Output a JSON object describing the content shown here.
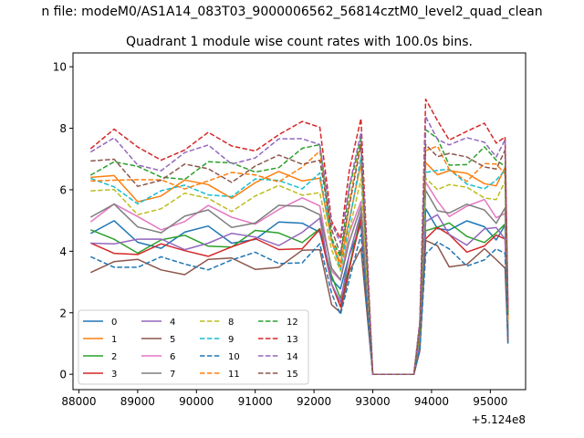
{
  "chart_data": {
    "type": "line",
    "suptitle": "n file: modeM0/AS1A14_083T03_9000006562_56814cztM0_level2_quad_clean",
    "title": "Quadrant 1 module wise count rates with 100.0s bins.",
    "xlabel": "",
    "ylabel": "",
    "x_offset_label": "+5.124e8",
    "xlim": [
      87900,
      95600
    ],
    "ylim": [
      -0.5,
      10.45
    ],
    "x_ticks": [
      88000,
      89000,
      90000,
      91000,
      92000,
      93000,
      94000,
      95000
    ],
    "x_tick_labels": [
      "88000",
      "89000",
      "90000",
      "91000",
      "92000",
      "93000",
      "94000",
      "95000"
    ],
    "y_ticks": [
      0,
      2,
      4,
      6,
      8,
      10
    ],
    "y_tick_labels": [
      "0",
      "2",
      "4",
      "6",
      "8",
      "10"
    ],
    "grid": false,
    "legend_position": "lower-left",
    "legend_columns": 4,
    "shape": [
      [
        88200,
        0.88
      ],
      [
        88600,
        0.9
      ],
      [
        89000,
        0.84
      ],
      [
        89400,
        0.84
      ],
      [
        89800,
        0.86
      ],
      [
        90200,
        0.88
      ],
      [
        90600,
        0.86
      ],
      [
        91000,
        0.88
      ],
      [
        91400,
        0.9
      ],
      [
        91800,
        0.92
      ],
      [
        92100,
        0.95
      ],
      [
        92300,
        0.6
      ],
      [
        92450,
        0.5
      ],
      [
        92600,
        0.75
      ],
      [
        92800,
        1.0
      ],
      [
        93000,
        0.0
      ],
      [
        93200,
        0.0
      ],
      [
        93600,
        0.0
      ],
      [
        93700,
        0.0
      ],
      [
        93800,
        0.2
      ],
      [
        93900,
        1.0
      ],
      [
        94100,
        0.97
      ],
      [
        94300,
        0.92
      ],
      [
        94600,
        0.9
      ],
      [
        94900,
        0.92
      ],
      [
        95100,
        0.9
      ],
      [
        95250,
        0.92
      ],
      [
        95300,
        0.25
      ]
    ],
    "series": [
      {
        "name": "0",
        "color": "#1f77b4",
        "style": "solid",
        "level": 5.2
      },
      {
        "name": "1",
        "color": "#ff7f0e",
        "style": "solid",
        "level": 7.0
      },
      {
        "name": "2",
        "color": "#2ca02c",
        "style": "solid",
        "level": 5.0
      },
      {
        "name": "3",
        "color": "#d62728",
        "style": "solid",
        "level": 4.7
      },
      {
        "name": "4",
        "color": "#9467bd",
        "style": "solid",
        "level": 5.0
      },
      {
        "name": "5",
        "color": "#8c564b",
        "style": "solid",
        "level": 4.1
      },
      {
        "name": "6",
        "color": "#e377c2",
        "style": "solid",
        "level": 5.9
      },
      {
        "name": "7",
        "color": "#7f7f7f",
        "style": "solid",
        "level": 5.8
      },
      {
        "name": "8",
        "color": "#bcbd22",
        "style": "dashed",
        "level": 6.5
      },
      {
        "name": "9",
        "color": "#17becf",
        "style": "dashed",
        "level": 6.9
      },
      {
        "name": "10",
        "color": "#1f77b4",
        "style": "dashed",
        "level": 4.2
      },
      {
        "name": "11",
        "color": "#ff7f0e",
        "style": "dashed",
        "level": 7.3
      },
      {
        "name": "12",
        "color": "#2ca02c",
        "style": "dashed",
        "level": 7.7
      },
      {
        "name": "13",
        "color": "#d62728",
        "style": "dashed",
        "level": 8.6
      },
      {
        "name": "14",
        "color": "#9467bd",
        "style": "dashed",
        "level": 8.2
      },
      {
        "name": "15",
        "color": "#8c564b",
        "style": "dashed",
        "level": 7.6
      }
    ]
  }
}
